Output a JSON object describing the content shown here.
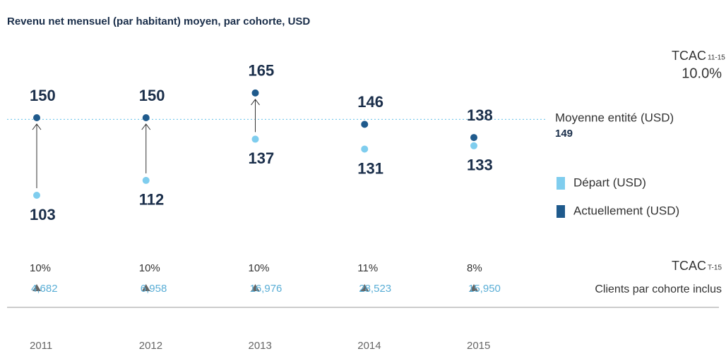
{
  "chart_data": {
    "type": "dot",
    "title": "Revenu net mensuel (par habitant) moyen, par cohorte, USD",
    "categories": [
      "2011",
      "2012",
      "2013",
      "2014",
      "2015"
    ],
    "series": [
      {
        "name": "Départ (USD)",
        "color": "#7fcdee",
        "values": [
          103,
          112,
          137,
          131,
          133
        ]
      },
      {
        "name": "Actuellement (USD)",
        "color": "#1f5a8c",
        "values": [
          150,
          150,
          165,
          146,
          138
        ]
      }
    ],
    "reference_line": {
      "label": "Moyenne entité (USD)",
      "value": 149
    },
    "cagr_total": {
      "label": "TCAC",
      "sub": "11-15",
      "value": "10.0%"
    },
    "cagr_row": {
      "label": "TCAC",
      "sub": "T-15",
      "values": [
        "10%",
        "10%",
        "10%",
        "11%",
        "8%"
      ]
    },
    "clients_row": {
      "label": "Clients par cohorte inclus",
      "values": [
        "4,682",
        "6,958",
        "16,976",
        "28,523",
        "15,950"
      ]
    }
  }
}
